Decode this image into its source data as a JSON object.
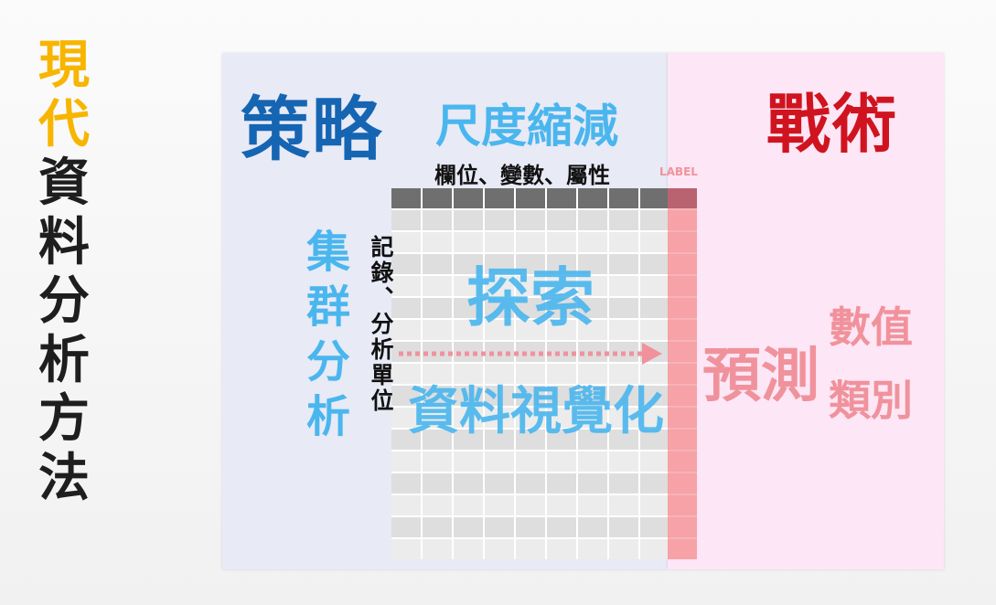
{
  "title": [
    "現",
    "代",
    "資",
    "料",
    "分",
    "析",
    "方",
    "法"
  ],
  "title_accent_count": 2,
  "colors": {
    "accent_yellow": "#f7b500",
    "strategy_blue": "#1565b3",
    "light_blue": "#4ab6ee",
    "tactics_red": "#d0141f",
    "pink": "#f0929c"
  },
  "left_panel": {
    "heading": "策略",
    "dimension_reduction": "尺度縮減",
    "columns_label": "欄位、變數、屬性",
    "rows_label": "記錄、分析單位",
    "clustering": [
      "集",
      "群",
      "分",
      "析"
    ],
    "explore": "探索",
    "data_visualization": "資料視覺化"
  },
  "label_tag": "LABEL",
  "right_panel": {
    "heading": "戰術",
    "predict": "預測",
    "numeric": "數值",
    "category": "類別"
  }
}
